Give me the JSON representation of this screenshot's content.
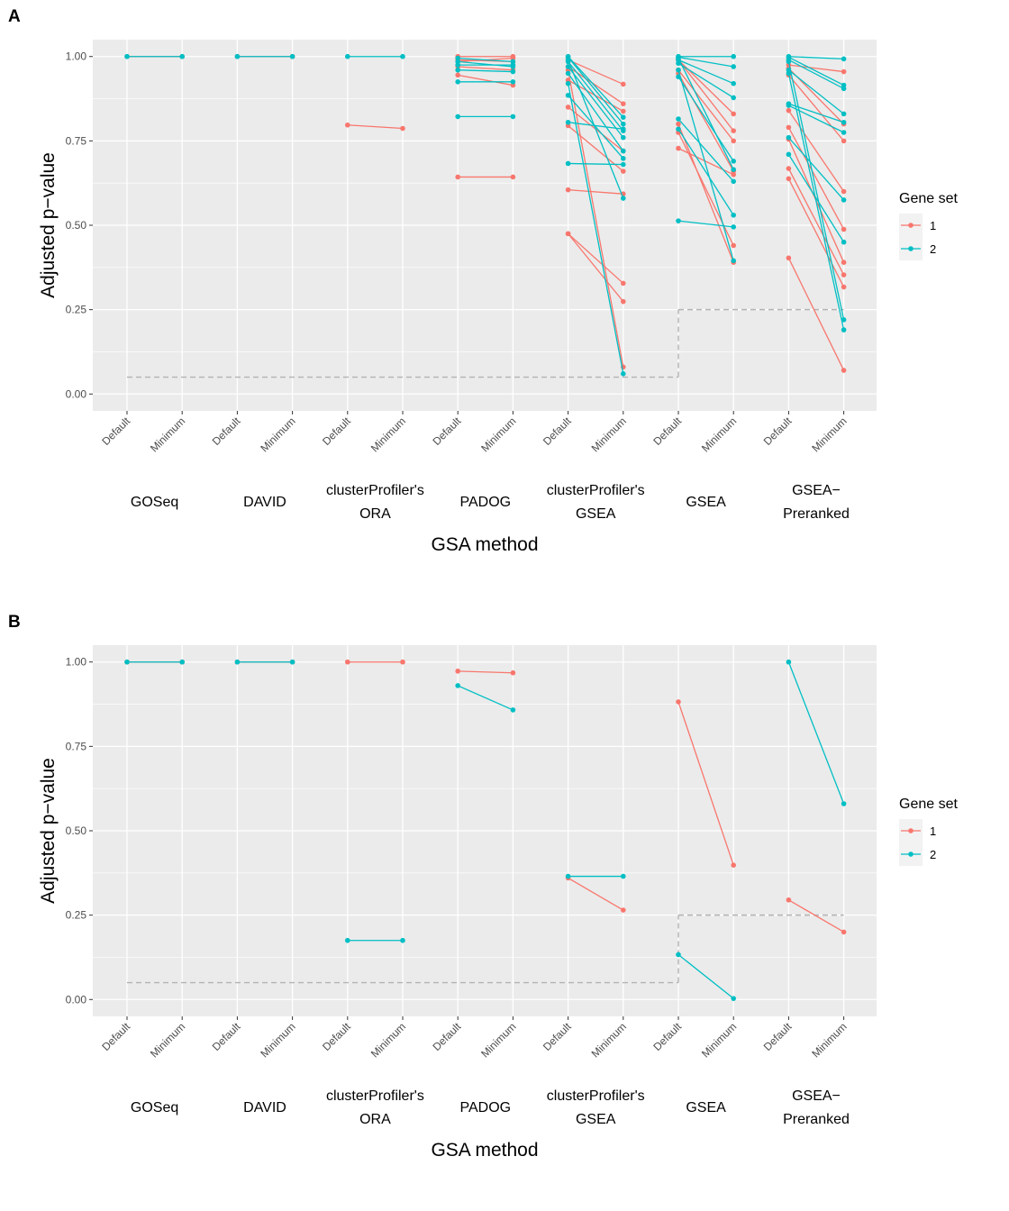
{
  "chart_data": [
    {
      "panel": "A",
      "type": "line",
      "xlabel": "GSA method",
      "ylabel": "Adjusted p−value",
      "ylim": [
        -0.05,
        1.05
      ],
      "yticks": [
        "0.00",
        "0.25",
        "0.50",
        "0.75",
        "1.00"
      ],
      "x_ticks": [
        "Default",
        "Minimum"
      ],
      "methods": [
        {
          "lines": [
            "GOSeq"
          ]
        },
        {
          "lines": [
            "DAVID"
          ]
        },
        {
          "lines": [
            "clusterProfiler's",
            "ORA"
          ]
        },
        {
          "lines": [
            "PADOG"
          ]
        },
        {
          "lines": [
            "clusterProfiler's",
            "GSEA"
          ]
        },
        {
          "lines": [
            "GSEA"
          ]
        },
        {
          "lines": [
            "GSEA−",
            "Preranked"
          ]
        }
      ],
      "legend": {
        "title": "Gene set",
        "position": "right",
        "entries": [
          "1",
          "2"
        ]
      },
      "colors": {
        "1": "#F8766D",
        "2": "#00BFC4",
        "threshold": "#b3b3b3"
      },
      "thresholds": [
        {
          "from_method": 0,
          "to_method": 5,
          "value": 0.05
        },
        {
          "from_method": 5,
          "to_method": 6,
          "value": 0.25
        }
      ],
      "series": [
        {
          "name": "1",
          "pairs": [
            [
              1.0,
              1.0
            ],
            [
              1.0,
              1.0
            ],
            [
              0.797,
              0.787
            ],
            [
              0.643,
              0.643,
              0.945,
              0.915,
              0.97,
              0.96,
              0.985,
              0.995,
              0.99,
              0.985,
              1.0,
              1.0
            ],
            [
              0.99,
              0.918,
              0.97,
              0.86,
              0.93,
              0.838,
              0.85,
              0.72,
              0.795,
              0.66,
              0.605,
              0.593,
              0.475,
              0.328,
              0.475,
              0.274,
              0.96,
              0.08
            ],
            [
              0.99,
              0.83,
              0.96,
              0.75,
              0.95,
              0.66,
              0.775,
              0.44,
              0.728,
              0.65,
              0.8,
              0.39,
              0.99,
              0.78
            ],
            [
              0.975,
              0.955,
              0.965,
              0.8,
              0.945,
              0.75,
              0.84,
              0.6,
              0.79,
              0.488,
              0.755,
              0.39,
              0.668,
              0.353,
              0.638,
              0.317,
              0.403,
              0.07
            ]
          ]
        },
        {
          "name": "2",
          "pairs": [
            [
              1.0,
              1.0
            ],
            [
              1.0,
              1.0
            ],
            [
              1.0,
              1.0
            ],
            [
              0.822,
              0.822,
              0.925,
              0.925,
              0.96,
              0.955,
              0.975,
              0.975,
              0.985,
              0.97,
              0.995,
              0.985
            ],
            [
              1.0,
              0.82,
              0.998,
              0.8,
              0.985,
              0.78,
              0.97,
              0.76,
              0.95,
              0.72,
              0.885,
              0.698,
              0.805,
              0.785,
              0.683,
              0.68,
              0.99,
              0.58,
              0.92,
              0.06
            ],
            [
              1.0,
              1.0,
              0.998,
              0.97,
              0.99,
              0.92,
              0.98,
              0.878,
              0.94,
              0.69,
              0.815,
              0.63,
              0.785,
              0.53,
              0.513,
              0.495,
              0.96,
              0.395,
              0.995,
              0.665
            ],
            [
              1.0,
              0.993,
              0.998,
              0.915,
              0.99,
              0.905,
              0.96,
              0.83,
              0.86,
              0.805,
              0.855,
              0.775,
              0.76,
              0.575,
              0.71,
              0.45,
              0.985,
              0.22,
              0.95,
              0.19
            ]
          ]
        }
      ]
    },
    {
      "panel": "B",
      "type": "line",
      "xlabel": "GSA method",
      "ylabel": "Adjusted p−value",
      "ylim": [
        -0.05,
        1.05
      ],
      "yticks": [
        "0.00",
        "0.25",
        "0.50",
        "0.75",
        "1.00"
      ],
      "x_ticks": [
        "Default",
        "Minimum"
      ],
      "methods": [
        {
          "lines": [
            "GOSeq"
          ]
        },
        {
          "lines": [
            "DAVID"
          ]
        },
        {
          "lines": [
            "clusterProfiler's",
            "ORA"
          ]
        },
        {
          "lines": [
            "PADOG"
          ]
        },
        {
          "lines": [
            "clusterProfiler's",
            "GSEA"
          ]
        },
        {
          "lines": [
            "GSEA"
          ]
        },
        {
          "lines": [
            "GSEA−",
            "Preranked"
          ]
        }
      ],
      "legend": {
        "title": "Gene set",
        "position": "right",
        "entries": [
          "1",
          "2"
        ]
      },
      "colors": {
        "1": "#F8766D",
        "2": "#00BFC4",
        "threshold": "#b3b3b3"
      },
      "thresholds": [
        {
          "from_method": 0,
          "to_method": 5,
          "value": 0.05
        },
        {
          "from_method": 5,
          "to_method": 6,
          "value": 0.25
        }
      ],
      "series": [
        {
          "name": "1",
          "pairs": [
            [
              1.0,
              1.0
            ],
            [
              1.0,
              1.0
            ],
            [
              1.0,
              1.0
            ],
            [
              0.973,
              0.968
            ],
            [
              0.36,
              0.265
            ],
            [
              0.882,
              0.398
            ],
            [
              0.295,
              0.2
            ]
          ]
        },
        {
          "name": "2",
          "pairs": [
            [
              1.0,
              1.0
            ],
            [
              1.0,
              1.0
            ],
            [
              0.175,
              0.175
            ],
            [
              0.93,
              0.858
            ],
            [
              0.365,
              0.365
            ],
            [
              0.133,
              0.003
            ],
            [
              1.0,
              0.58
            ]
          ]
        }
      ]
    }
  ]
}
